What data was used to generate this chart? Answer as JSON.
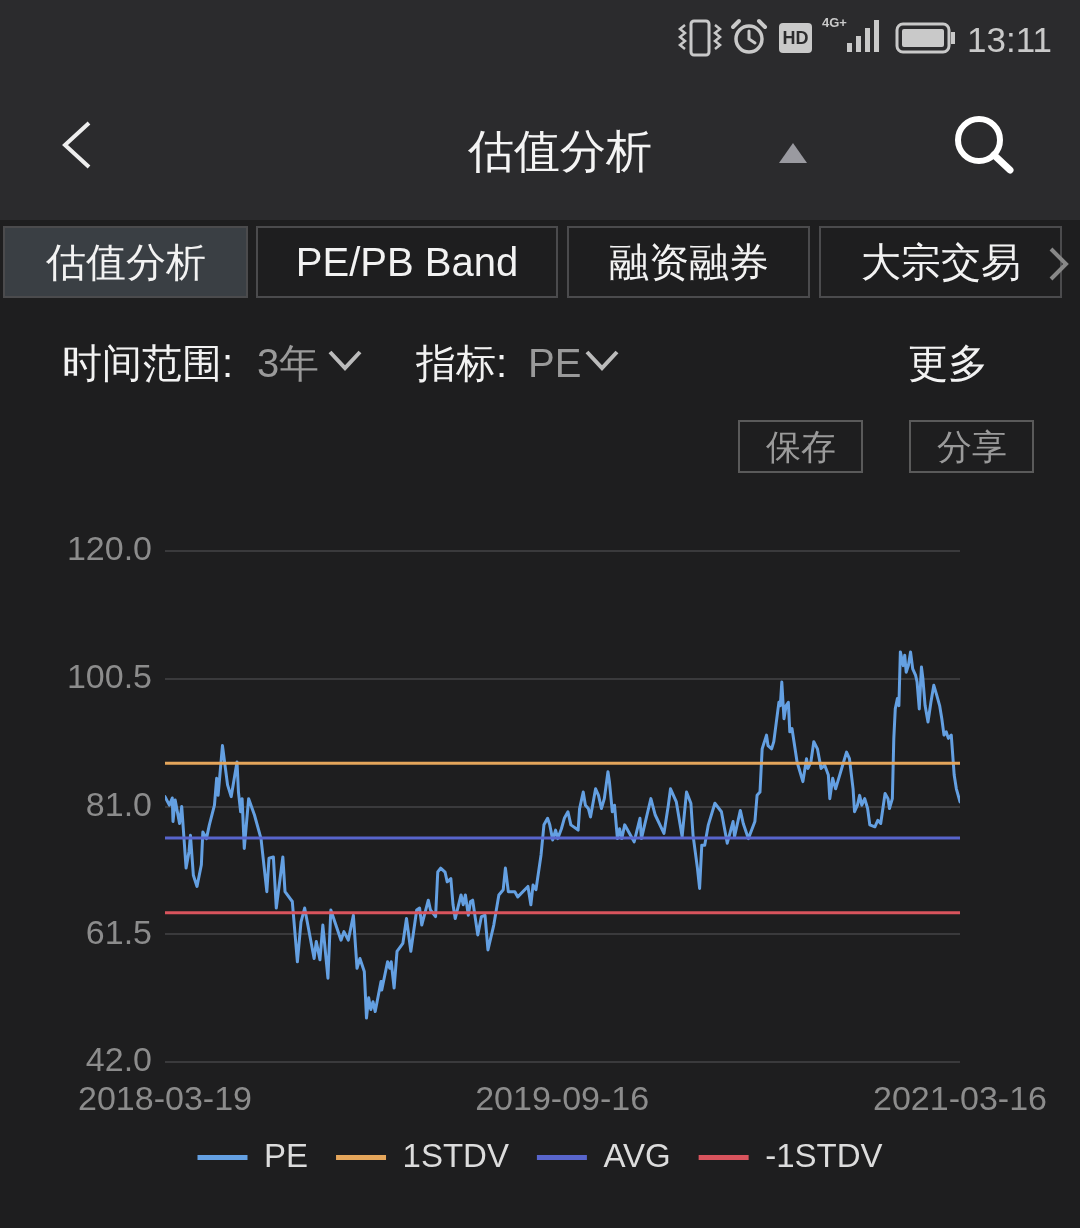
{
  "chart_data": {
    "type": "line",
    "title": "估值分析",
    "annotations": [
      "13:11",
      "估值分析",
      "PE/PB Band",
      "融资融券",
      "大宗交易",
      "时间范围:",
      "3年",
      "指标:",
      "PE",
      "更多",
      "保存",
      "分享",
      "HD",
      "4G+"
    ],
    "xlim": [
      "2018-03-19",
      "2021-03-16"
    ],
    "xticks": [
      "2018-03-19",
      "2019-09-16",
      "2021-03-16"
    ],
    "ylim": [
      42,
      120
    ],
    "yticks": [
      {
        "value": 42,
        "label": "42.0"
      },
      {
        "value": 61.5,
        "label": "61.5"
      },
      {
        "value": 81,
        "label": "81.0"
      },
      {
        "value": 100.5,
        "label": "100.5"
      },
      {
        "value": 120,
        "label": "120.0"
      }
    ],
    "grid": "y",
    "legend": "bottom",
    "marker": "none",
    "series": [
      {
        "name": "PE",
        "color": "#64a0e2",
        "x": [
          "2018-03-19",
          "2018-03-25",
          "2018-03-29",
          "2018-03-30",
          "2018-04-02",
          "2018-04-08",
          "2018-04-11",
          "2018-04-17",
          "2018-04-21",
          "2018-04-23",
          "2018-04-27",
          "2018-05-02",
          "2018-05-08",
          "2018-05-10",
          "2018-05-15",
          "2018-05-19",
          "2018-05-26",
          "2018-05-29",
          "2018-05-31",
          "2018-06-06",
          "2018-06-13",
          "2018-06-18",
          "2018-06-26",
          "2018-06-28",
          "2018-07-01",
          "2018-07-03",
          "2018-07-06",
          "2018-07-12",
          "2018-07-20",
          "2018-07-29",
          "2018-08-06",
          "2018-08-09",
          "2018-08-15",
          "2018-08-19",
          "2018-08-28",
          "2018-08-31",
          "2018-09-10",
          "2018-09-17",
          "2018-09-22",
          "2018-09-27",
          "2018-10-10",
          "2018-10-13",
          "2018-10-18",
          "2018-10-22",
          "2018-10-29",
          "2018-11-02",
          "2018-11-16",
          "2018-11-20",
          "2018-11-26",
          "2018-12-03",
          "2018-12-08",
          "2018-12-12",
          "2018-12-18",
          "2018-12-21",
          "2018-12-24",
          "2018-12-27",
          "2018-12-30",
          "2019-01-02",
          "2019-01-10",
          "2019-01-11",
          "2019-01-19",
          "2019-01-22",
          "2019-01-24",
          "2019-01-28",
          "2019-02-01",
          "2019-02-09",
          "2019-02-14",
          "2019-02-20",
          "2019-02-28",
          "2019-03-04",
          "2019-03-07",
          "2019-03-16",
          "2019-03-19",
          "2019-03-26",
          "2019-03-29",
          "2019-04-02",
          "2019-04-08",
          "2019-04-11",
          "2019-04-16",
          "2019-04-19",
          "2019-04-22",
          "2019-04-30",
          "2019-05-03",
          "2019-05-06",
          "2019-05-10",
          "2019-05-13",
          "2019-05-16",
          "2019-05-23",
          "2019-05-28",
          "2019-06-02",
          "2019-06-06",
          "2019-06-14",
          "2019-06-21",
          "2019-06-27",
          "2019-06-30",
          "2019-07-04",
          "2019-07-13",
          "2019-07-17",
          "2019-07-31",
          "2019-08-04",
          "2019-08-07",
          "2019-08-11",
          "2019-08-18",
          "2019-08-22",
          "2019-08-27",
          "2019-08-30",
          "2019-09-03",
          "2019-09-07",
          "2019-09-10",
          "2019-09-15",
          "2019-09-19",
          "2019-09-24",
          "2019-09-28",
          "2019-10-08",
          "2019-10-10",
          "2019-10-15",
          "2019-10-18",
          "2019-10-22",
          "2019-10-25",
          "2019-11-01",
          "2019-11-05",
          "2019-11-09",
          "2019-11-13",
          "2019-11-18",
          "2019-11-20",
          "2019-11-24",
          "2019-11-27",
          "2019-12-01",
          "2019-12-04",
          "2019-12-07",
          "2019-12-11",
          "2019-12-19",
          "2019-12-24",
          "2020-01-01",
          "2020-01-03",
          "2020-01-10",
          "2020-01-16",
          "2020-01-22",
          "2020-02-03",
          "2020-02-09",
          "2020-02-12",
          "2020-02-20",
          "2020-02-28",
          "2020-03-05",
          "2020-03-11",
          "2020-03-14",
          "2020-03-20",
          "2020-03-23",
          "2020-03-26",
          "2020-03-30",
          "2020-04-04",
          "2020-04-13",
          "2020-04-22",
          "2020-04-30",
          "2020-05-08",
          "2020-05-10",
          "2020-05-18",
          "2020-05-22",
          "2020-05-29",
          "2020-06-07",
          "2020-06-10",
          "2020-06-14",
          "2020-06-17",
          "2020-06-23",
          "2020-06-25",
          "2020-06-30",
          "2020-07-03",
          "2020-07-10",
          "2020-07-12",
          "2020-07-14",
          "2020-07-17",
          "2020-07-20",
          "2020-07-23",
          "2020-07-25",
          "2020-07-28",
          "2020-08-04",
          "2020-08-08",
          "2020-08-12",
          "2020-08-17",
          "2020-08-19",
          "2020-08-23",
          "2020-08-27",
          "2020-09-01",
          "2020-09-06",
          "2020-09-11",
          "2020-09-16",
          "2020-09-18",
          "2020-09-22",
          "2020-09-26",
          "2020-10-11",
          "2020-10-15",
          "2020-10-20",
          "2020-10-22",
          "2020-10-26",
          "2020-10-29",
          "2020-11-01",
          "2020-11-05",
          "2020-11-09",
          "2020-11-12",
          "2020-11-19",
          "2020-11-23",
          "2020-11-27",
          "2020-12-03",
          "2020-12-07",
          "2020-12-09",
          "2020-12-13",
          "2020-12-15",
          "2020-12-17",
          "2020-12-20",
          "2020-12-22",
          "2020-12-24",
          "2020-12-28",
          "2020-12-30",
          "2021-01-01",
          "2021-01-04",
          "2021-01-07",
          "2021-01-10",
          "2021-01-14",
          "2021-01-16",
          "2021-01-19",
          "2021-01-22",
          "2021-01-24",
          "2021-01-27",
          "2021-01-31",
          "2021-02-04",
          "2021-02-08",
          "2021-02-12",
          "2021-02-16",
          "2021-02-19",
          "2021-02-22",
          "2021-02-25",
          "2021-02-28",
          "2021-03-04",
          "2021-03-08",
          "2021-03-11",
          "2021-03-16"
        ],
        "values": [
          82.5,
          81.2,
          82.3,
          78.7,
          82.0,
          78.4,
          81.0,
          71.6,
          74.1,
          76.6,
          70.5,
          68.8,
          72.1,
          77.1,
          76.1,
          78.2,
          81.2,
          85.3,
          82.7,
          90.3,
          84.3,
          82.5,
          87.8,
          83.2,
          80.2,
          82.2,
          74.6,
          82.2,
          79.7,
          76.1,
          68.0,
          73.1,
          73.3,
          65.5,
          73.3,
          68.0,
          66.5,
          57.3,
          63.4,
          65.5,
          57.8,
          60.4,
          57.6,
          62.9,
          54.8,
          65.2,
          60.6,
          61.9,
          60.6,
          64.4,
          56.3,
          57.8,
          55.8,
          48.7,
          51.8,
          50.0,
          51.2,
          49.7,
          54.3,
          53.0,
          57.3,
          56.3,
          57.3,
          53.3,
          58.9,
          60.1,
          63.9,
          58.9,
          65.2,
          65.5,
          62.9,
          66.7,
          65.2,
          64.2,
          71.0,
          71.6,
          71.0,
          69.5,
          70.0,
          66.0,
          63.9,
          67.5,
          66.0,
          67.5,
          64.4,
          66.5,
          66.7,
          61.4,
          64.2,
          64.4,
          59.1,
          62.9,
          67.5,
          68.3,
          71.6,
          68.0,
          68.0,
          67.2,
          68.8,
          66.0,
          69.0,
          68.3,
          73.6,
          78.2,
          79.2,
          78.2,
          75.9,
          77.4,
          76.1,
          77.6,
          79.2,
          80.2,
          78.2,
          77.4,
          80.7,
          83.2,
          81.2,
          80.7,
          79.4,
          83.7,
          82.7,
          80.7,
          82.2,
          86.3,
          84.8,
          80.2,
          81.2,
          76.1,
          77.6,
          76.1,
          78.2,
          76.6,
          75.6,
          79.2,
          76.1,
          79.4,
          82.2,
          79.7,
          76.9,
          81.2,
          83.7,
          81.7,
          76.4,
          83.2,
          81.5,
          76.6,
          71.6,
          68.5,
          75.1,
          75.1,
          78.2,
          81.5,
          80.2,
          75.4,
          78.7,
          76.4,
          80.4,
          78.4,
          76.1,
          78.7,
          82.7,
          83.2,
          89.8,
          91.9,
          90.3,
          89.8,
          90.9,
          96.9,
          96.4,
          100.0,
          94.4,
          96.4,
          96.9,
          92.4,
          92.9,
          87.8,
          86.3,
          84.8,
          88.3,
          86.8,
          87.8,
          90.9,
          89.8,
          86.8,
          87.3,
          85.8,
          82.2,
          85.3,
          83.7,
          89.3,
          88.3,
          83.7,
          80.2,
          81.2,
          82.7,
          81.2,
          82.2,
          80.7,
          78.2,
          77.9,
          78.9,
          78.4,
          83.0,
          82.2,
          80.7,
          82.2,
          91.4,
          95.9,
          97.5,
          96.4,
          104.6,
          102.5,
          104.1,
          101.5,
          102.5,
          104.6,
          102.0,
          101.0,
          100.0,
          95.9,
          102.3,
          100.5,
          96.4,
          93.9,
          96.9,
          99.5,
          98.0,
          96.4,
          94.4,
          91.9,
          92.4,
          91.4,
          91.9,
          85.8,
          83.7,
          81.7
        ]
      },
      {
        "name": "1STDV",
        "color": "#e5a65b",
        "x": [
          "2018-03-19",
          "2021-03-16"
        ],
        "values": [
          87.6,
          87.6
        ]
      },
      {
        "name": "AVG",
        "color": "#5865cc",
        "x": [
          "2018-03-19",
          "2021-03-16"
        ],
        "values": [
          76.2,
          76.2
        ]
      },
      {
        "name": "-1STDV",
        "color": "#d9545d",
        "x": [
          "2018-03-19",
          "2021-03-16"
        ],
        "values": [
          64.8,
          64.8
        ]
      }
    ]
  }
}
